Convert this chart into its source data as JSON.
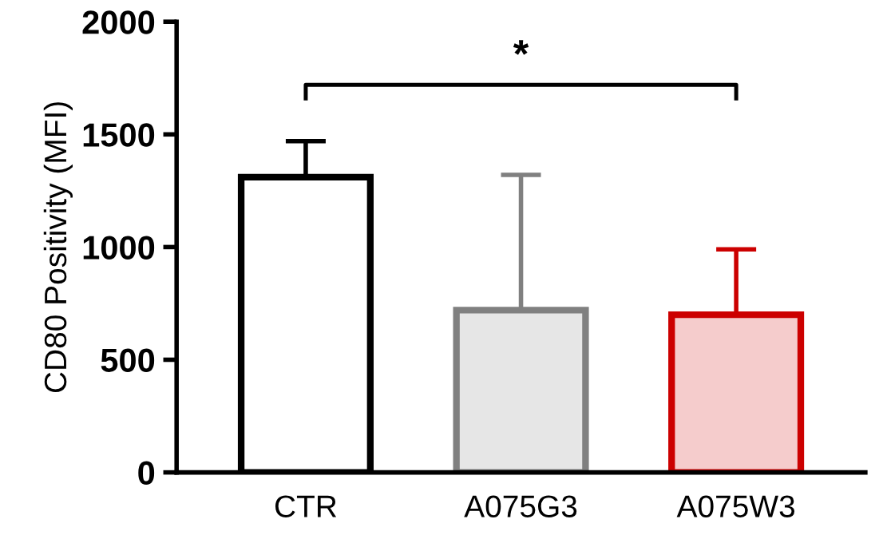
{
  "chart_data": {
    "type": "bar",
    "ylabel": "CD80 Positivity (MFI)",
    "categories": [
      "CTR",
      "A075G3",
      "A075W3"
    ],
    "values": [
      1310,
      720,
      700
    ],
    "errors": [
      [
        1310,
        1470
      ],
      [
        720,
        1320
      ],
      [
        700,
        990
      ]
    ],
    "colors": [
      "#000000",
      "#808080",
      "#cc0000"
    ],
    "ylim": [
      0,
      2000
    ],
    "yticks": [
      0,
      500,
      1000,
      1500,
      2000
    ],
    "grid": false,
    "annotations": [
      "*"
    ]
  }
}
